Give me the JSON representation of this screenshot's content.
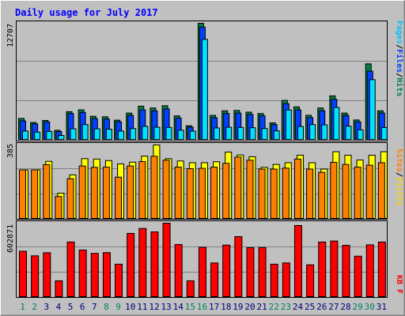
{
  "chart_data": [
    {
      "type": "bar",
      "title": "Daily usage for July 2017",
      "max_label": "12707",
      "ylim": [
        0,
        12707
      ],
      "legend": [
        "Pages",
        "Files",
        "Hits"
      ],
      "legend_separator": "/",
      "categories": [
        "1",
        "2",
        "3",
        "4",
        "5",
        "6",
        "7",
        "8",
        "9",
        "10",
        "11",
        "12",
        "13",
        "14",
        "15",
        "16",
        "17",
        "18",
        "19",
        "20",
        "21",
        "22",
        "23",
        "24",
        "25",
        "26",
        "27",
        "28",
        "29",
        "30",
        "31"
      ],
      "weekend_days": [
        "1",
        "2",
        "8",
        "9",
        "15",
        "16",
        "22",
        "23",
        "29",
        "30"
      ],
      "series": [
        {
          "name": "Hits",
          "color": "#008040",
          "values": [
            2370,
            1930,
            2150,
            1080,
            3100,
            3300,
            2600,
            2550,
            2180,
            2950,
            3700,
            3500,
            3750,
            2650,
            1570,
            12707,
            2700,
            3200,
            3240,
            3050,
            2900,
            1890,
            4330,
            3620,
            2710,
            3500,
            4820,
            2950,
            2200,
            8300,
            3200
          ]
        },
        {
          "name": "Files",
          "color": "#0040ff",
          "values": [
            2100,
            1780,
            1990,
            940,
            2900,
            3020,
            2350,
            2300,
            2010,
            2700,
            3300,
            3180,
            3400,
            2400,
            1430,
            12300,
            2450,
            2910,
            2950,
            2800,
            2650,
            1700,
            3970,
            3300,
            2460,
            3200,
            4450,
            2700,
            2000,
            7500,
            2950
          ]
        },
        {
          "name": "Pages",
          "color": "#00e0ff",
          "values": [
            1000,
            880,
            950,
            520,
            1240,
            1700,
            1240,
            1200,
            1000,
            1270,
            1510,
            1410,
            1390,
            1090,
            990,
            10960,
            1330,
            1410,
            1390,
            1360,
            1270,
            1020,
            3290,
            1490,
            1700,
            1670,
            3560,
            1530,
            1130,
            6580,
            1380
          ]
        }
      ]
    },
    {
      "type": "bar",
      "max_label": "385",
      "ylim": [
        0,
        385
      ],
      "legend": [
        "Sites",
        "Visits"
      ],
      "legend_separator": "/",
      "series": [
        {
          "name": "Visits",
          "color": "#ffff00",
          "values": [
            256,
            256,
            300,
            135,
            230,
            314,
            312,
            304,
            287,
            296,
            327,
            385,
            314,
            302,
            293,
            293,
            298,
            348,
            333,
            324,
            269,
            284,
            293,
            332,
            293,
            260,
            350,
            332,
            307,
            332,
            350
          ]
        },
        {
          "name": "Sites",
          "color": "#ff8000",
          "values": [
            256,
            256,
            283,
            118,
            210,
            276,
            269,
            270,
            218,
            276,
            299,
            326,
            306,
            270,
            262,
            264,
            270,
            290,
            322,
            306,
            260,
            260,
            265,
            312,
            260,
            243,
            295,
            284,
            270,
            280,
            293
          ]
        }
      ]
    },
    {
      "type": "bar",
      "max_label": "602871",
      "ylim": [
        0,
        602871
      ],
      "legend": [
        "KB F"
      ],
      "series": [
        {
          "name": "KB F",
          "color": "#ff0000",
          "values": [
            375000,
            338000,
            363000,
            135000,
            450000,
            385000,
            358000,
            364000,
            270000,
            520000,
            560000,
            532000,
            602871,
            430000,
            135000,
            407000,
            280000,
            425000,
            494000,
            404000,
            405000,
            270000,
            280000,
            584000,
            265000,
            450000,
            458000,
            423000,
            335000,
            427000,
            450000
          ]
        }
      ]
    }
  ]
}
